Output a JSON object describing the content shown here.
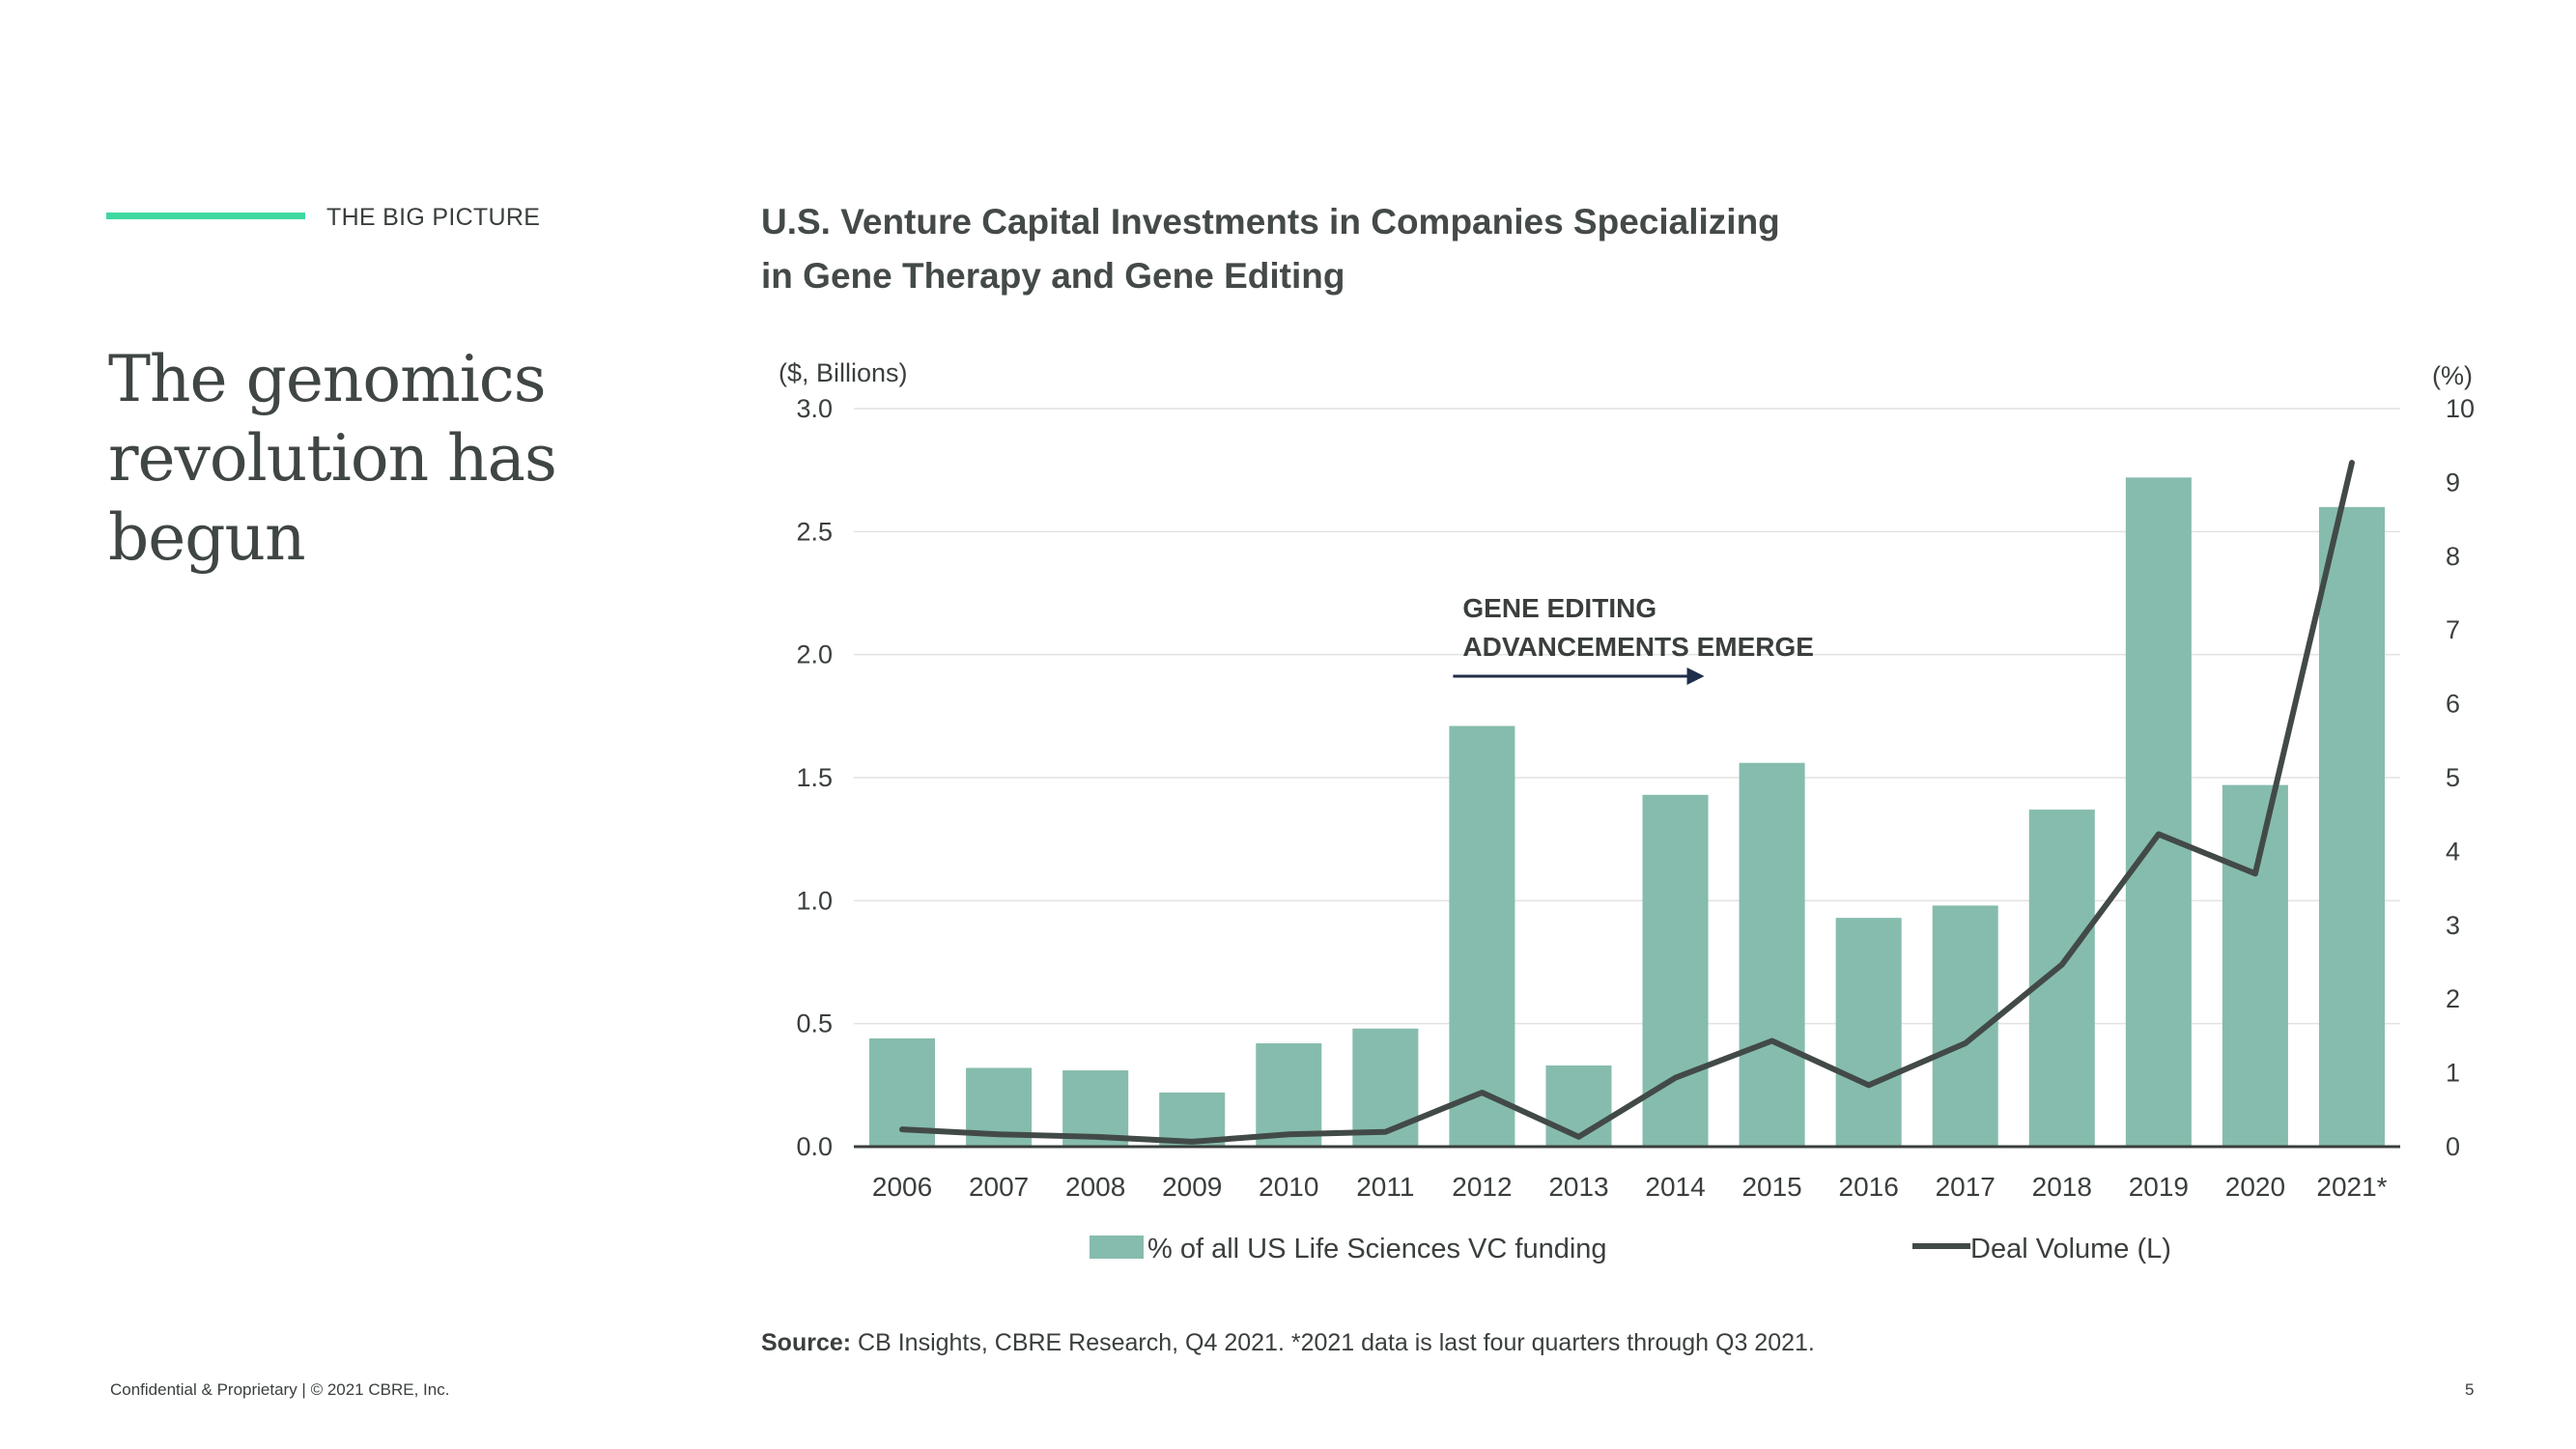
{
  "section": {
    "label": "THE BIG PICTURE"
  },
  "headline": {
    "line1": "The genomics",
    "line2": "revolution has begun"
  },
  "chart_title": {
    "line1": "U.S. Venture Capital Investments in Companies Specializing",
    "line2": "in Gene Therapy and Gene Editing"
  },
  "colors": {
    "accent": "#3fd9a0",
    "bar": "#86bcad",
    "line": "#424a48",
    "arrow": "#1f2e4a"
  },
  "chart_data": {
    "type": "bar",
    "categories": [
      "2006",
      "2007",
      "2008",
      "2009",
      "2010",
      "2011",
      "2012",
      "2013",
      "2014",
      "2015",
      "2016",
      "2017",
      "2018",
      "2019",
      "2020",
      "2021*"
    ],
    "series": [
      {
        "name": "% of all US Life Sciences VC funding",
        "kind": "bar",
        "axis": "left",
        "values": [
          0.44,
          0.32,
          0.31,
          0.22,
          0.42,
          0.48,
          1.71,
          0.33,
          1.43,
          1.56,
          0.93,
          0.98,
          1.37,
          2.72,
          1.47,
          2.6
        ]
      },
      {
        "name": "Deal Volume (L)",
        "kind": "line",
        "axis": "left",
        "values": [
          0.07,
          0.05,
          0.04,
          0.02,
          0.05,
          0.06,
          0.22,
          0.04,
          0.28,
          0.43,
          0.25,
          0.42,
          0.74,
          1.27,
          1.11,
          2.78
        ]
      }
    ],
    "y_left": {
      "label": "($, Billions)",
      "min": 0,
      "max": 3,
      "ticks": [
        "0.0",
        "0.5",
        "1.0",
        "1.5",
        "2.0",
        "2.5",
        "3.0"
      ]
    },
    "y_right": {
      "label": "(%)",
      "min": 0,
      "max": 10,
      "ticks": [
        "0",
        "1",
        "2",
        "3",
        "4",
        "5",
        "6",
        "7",
        "8",
        "9",
        "10"
      ]
    },
    "annotation": {
      "line1": "GENE EDITING",
      "line2": "ADVANCEMENTS EMERGE",
      "from_category": "2012",
      "to_category": "2014"
    },
    "grid": true,
    "legend_position": "bottom"
  },
  "source": {
    "label": "Source:",
    "text": " CB Insights, CBRE Research, Q4 2021. *2021 data is last four quarters through Q3 2021."
  },
  "footer": {
    "text": "Confidential & Proprietary | © 2021 CBRE, Inc.",
    "page": "5"
  }
}
